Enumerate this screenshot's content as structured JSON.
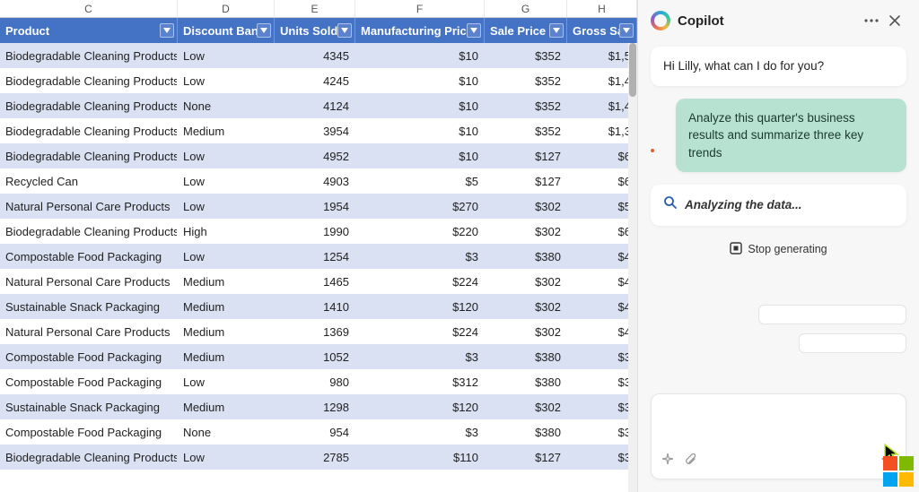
{
  "sheet": {
    "column_letters": [
      "C",
      "D",
      "E",
      "F",
      "G",
      "H"
    ],
    "headers": [
      "Product",
      "Discount Band",
      "Units Sold",
      "Manufacturing Price",
      "Sale Price",
      "Gross Sale"
    ],
    "column_align": [
      "left",
      "left",
      "right",
      "right",
      "right",
      "right"
    ],
    "stripe_color": "#d9e1f2",
    "header_bg": "#4472c4",
    "rows": [
      [
        "Biodegradable Cleaning Products",
        "Low",
        "4345",
        "$10",
        "$352",
        "$1,5"
      ],
      [
        "Biodegradable Cleaning Products",
        "Low",
        "4245",
        "$10",
        "$352",
        "$1,4"
      ],
      [
        "Biodegradable Cleaning Products",
        "None",
        "4124",
        "$10",
        "$352",
        "$1,4"
      ],
      [
        "Biodegradable Cleaning Products",
        "Medium",
        "3954",
        "$10",
        "$352",
        "$1,3"
      ],
      [
        "Biodegradable Cleaning Products",
        "Low",
        "4952",
        "$10",
        "$127",
        "$6"
      ],
      [
        "Recycled Can",
        "Low",
        "4903",
        "$5",
        "$127",
        "$6"
      ],
      [
        "Natural Personal Care Products",
        "Low",
        "1954",
        "$270",
        "$302",
        "$5"
      ],
      [
        "Biodegradable Cleaning Products",
        "High",
        "1990",
        "$220",
        "$302",
        "$6"
      ],
      [
        "Compostable Food Packaging",
        "Low",
        "1254",
        "$3",
        "$380",
        "$4"
      ],
      [
        "Natural Personal Care Products",
        "Medium",
        "1465",
        "$224",
        "$302",
        "$4"
      ],
      [
        "Sustainable Snack Packaging",
        "Medium",
        "1410",
        "$120",
        "$302",
        "$4"
      ],
      [
        "Natural Personal Care Products",
        "Medium",
        "1369",
        "$224",
        "$302",
        "$4"
      ],
      [
        "Compostable Food Packaging",
        "Medium",
        "1052",
        "$3",
        "$380",
        "$3"
      ],
      [
        "Compostable Food Packaging",
        "Low",
        "980",
        "$312",
        "$380",
        "$3"
      ],
      [
        "Sustainable Snack Packaging",
        "Medium",
        "1298",
        "$120",
        "$302",
        "$3"
      ],
      [
        "Compostable Food Packaging",
        "None",
        "954",
        "$3",
        "$380",
        "$3"
      ],
      [
        "Biodegradable Cleaning Products",
        "Low",
        "2785",
        "$110",
        "$127",
        "$3"
      ]
    ]
  },
  "copilot": {
    "title": "Copilot",
    "greeting": "Hi Lilly, what can I do for you?",
    "user_prompt": "Analyze this quarter's business results and summarize three key trends",
    "status_text": "Analyzing the data...",
    "stop_label": "Stop generating",
    "colors": {
      "panel_bg": "#f7f7f7",
      "ai_bubble": "#ffffff",
      "user_bubble": "#b7e2d1"
    }
  }
}
